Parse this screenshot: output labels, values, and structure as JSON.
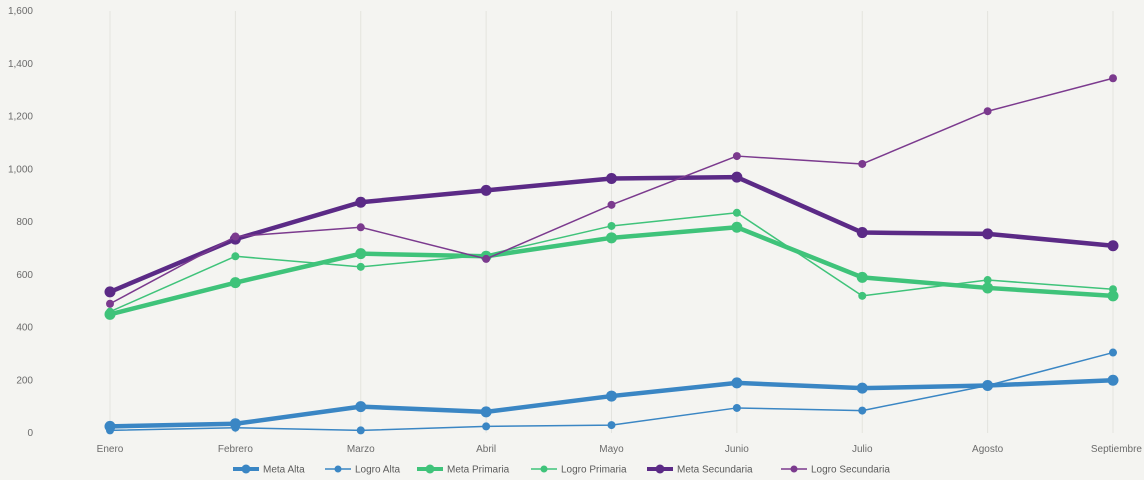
{
  "chart_data": {
    "type": "line",
    "title": "",
    "xlabel": "",
    "ylabel": "",
    "categories": [
      "Enero",
      "Febrero",
      "Marzo",
      "Abril",
      "Mayo",
      "Junio",
      "Julio",
      "Agosto",
      "Septiembre"
    ],
    "ylim": [
      0,
      1600
    ],
    "yticks": [
      0,
      200,
      400,
      600,
      800,
      1000,
      1200,
      1400,
      1600
    ],
    "ytick_labels": [
      "0",
      "200",
      "400",
      "600",
      "800",
      "1,000",
      "1,200",
      "1,400",
      "1,600"
    ],
    "grid": "vertical",
    "legend_position": "bottom",
    "series": [
      {
        "name": "Meta Alta",
        "color": "#3a86c4",
        "style": "thick",
        "values": [
          25,
          35,
          100,
          80,
          140,
          190,
          170,
          180,
          200
        ]
      },
      {
        "name": "Logro Alta",
        "color": "#3a86c4",
        "style": "thin",
        "values": [
          10,
          20,
          10,
          25,
          30,
          95,
          85,
          180,
          305
        ]
      },
      {
        "name": "Meta Primaria",
        "color": "#3fc37a",
        "style": "thick",
        "values": [
          450,
          570,
          680,
          670,
          740,
          780,
          590,
          550,
          520
        ]
      },
      {
        "name": "Logro Primaria",
        "color": "#3fc37a",
        "style": "thin",
        "values": [
          460,
          670,
          630,
          675,
          785,
          835,
          520,
          580,
          545
        ]
      },
      {
        "name": "Meta Secundaria",
        "color": "#5b2a86",
        "style": "thick",
        "values": [
          535,
          735,
          875,
          920,
          965,
          970,
          760,
          755,
          710
        ]
      },
      {
        "name": "Logro Secundaria",
        "color": "#7b3a8e",
        "style": "thin",
        "values": [
          490,
          745,
          780,
          660,
          865,
          1050,
          1020,
          1220,
          1345
        ]
      }
    ]
  }
}
